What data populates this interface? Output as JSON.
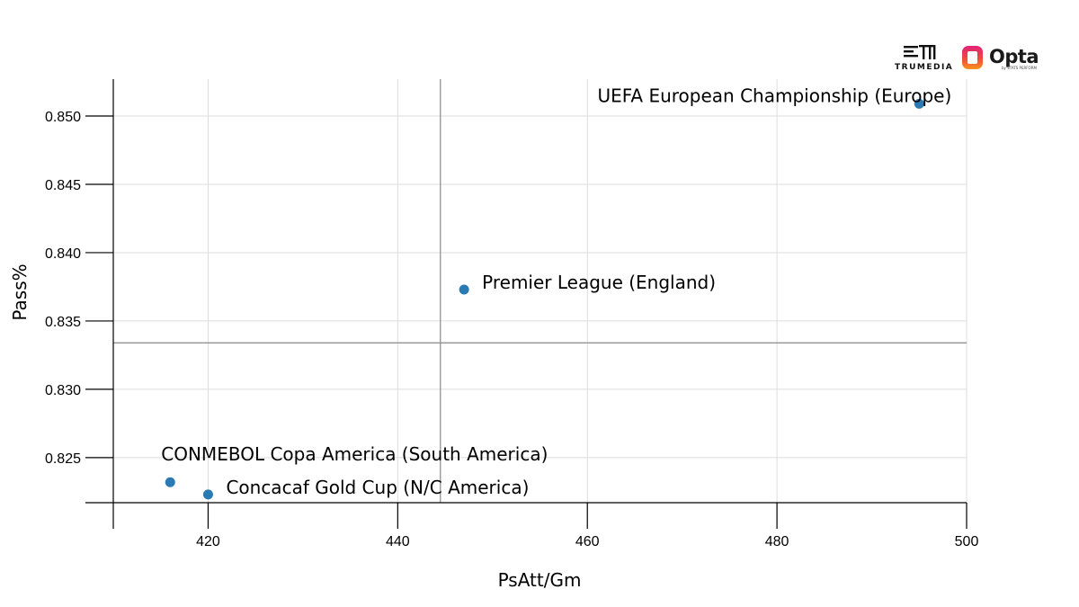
{
  "logos": {
    "trumedia_text": "TRUMEDIA",
    "opta_text": "Opta",
    "opta_sub": "by STATS PERFORM"
  },
  "chart_data": {
    "type": "scatter",
    "xlabel": "PsAtt/Gm",
    "ylabel": "Pass%",
    "xlim": [
      410,
      500
    ],
    "ylim": [
      0.8217,
      0.8527
    ],
    "xticks": [
      420,
      440,
      460,
      480,
      500
    ],
    "xtick_labels": [
      "420",
      "440",
      "460",
      "480",
      "500"
    ],
    "yticks": [
      0.825,
      0.83,
      0.835,
      0.84,
      0.845,
      0.85
    ],
    "ytick_labels": [
      "0.825",
      "0.830",
      "0.835",
      "0.840",
      "0.845",
      "0.850"
    ],
    "grid": true,
    "reference_lines": {
      "x": 444.5,
      "y": 0.8334
    },
    "point_color": "#2a7ab4",
    "points": [
      {
        "label": "UEFA European Championship (Europe)",
        "x": 495,
        "y": 0.8509,
        "label_pos": "top-left"
      },
      {
        "label": "Premier League (England)",
        "x": 447,
        "y": 0.8373,
        "label_pos": "right"
      },
      {
        "label": "CONMEBOL Copa America (South America)",
        "x": 416,
        "y": 0.8232,
        "label_pos": "top-left"
      },
      {
        "label": "Concacaf Gold Cup (N/C America)",
        "x": 420,
        "y": 0.8223,
        "label_pos": "right"
      }
    ]
  }
}
